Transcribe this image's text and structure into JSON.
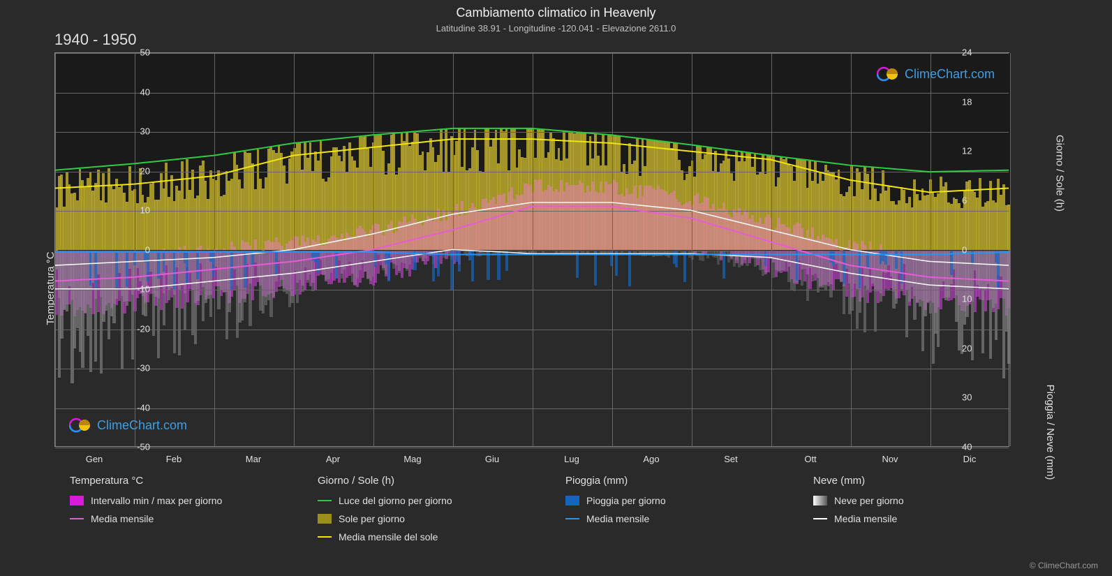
{
  "title": "Cambiamento climatico in Heavenly",
  "subtitle": "Latitudine 38.91 - Longitudine -120.041 - Elevazione 2611.0",
  "period": "1940 - 1950",
  "watermark_text": "ClimeChart.com",
  "copyright": "© ClimeChart.com",
  "chart": {
    "background": "#2a2a2a",
    "grid_color": "#666666",
    "text_color": "#e0e0e0",
    "y_left": {
      "title": "Temperatura °C",
      "min": -50,
      "max": 50,
      "step": 10,
      "ticks": [
        -50,
        -40,
        -30,
        -20,
        -10,
        0,
        10,
        20,
        30,
        40,
        50
      ]
    },
    "y_right_top": {
      "title": "Giorno / Sole (h)",
      "ticks": [
        0,
        6,
        12,
        18,
        24
      ],
      "min": 0,
      "max": 24
    },
    "y_right_bottom": {
      "title": "Pioggia / Neve (mm)",
      "ticks": [
        0,
        10,
        20,
        30,
        40
      ],
      "min": 0,
      "max": 40
    },
    "x": {
      "labels": [
        "Gen",
        "Feb",
        "Mar",
        "Apr",
        "Mag",
        "Giu",
        "Lug",
        "Ago",
        "Set",
        "Ott",
        "Nov",
        "Dic"
      ]
    },
    "series": {
      "daylight": {
        "color": "#2ecc40",
        "values_h": [
          9.7,
          10.5,
          11.5,
          13.0,
          14.0,
          14.8,
          14.8,
          14.0,
          12.8,
          11.5,
          10.3,
          9.5
        ]
      },
      "sun_monthly": {
        "color": "#f1e50a",
        "values_h": [
          7.5,
          8.0,
          9.0,
          11.5,
          12.5,
          13.5,
          13.5,
          13.0,
          12.0,
          11.0,
          8.5,
          7.0
        ]
      },
      "temp_mean": {
        "color": "#e85bd8",
        "values_c": [
          -8,
          -7,
          -5,
          -3,
          0,
          5,
          11,
          11,
          8,
          2,
          -4,
          -7
        ]
      },
      "temp_max": {
        "color": "#ffffff",
        "values_c": [
          -4,
          -3,
          -2,
          0,
          4,
          9,
          12,
          12,
          10,
          5,
          0,
          -3
        ]
      },
      "temp_min": {
        "color": "#ffffff",
        "values_c": [
          -10,
          -10,
          -8,
          -6,
          -3,
          0,
          -1,
          -1,
          -1,
          -2,
          -6,
          -9
        ]
      },
      "rain_monthly": {
        "color": "#2196f3",
        "values_mm": [
          0.5,
          0.5,
          0.5,
          0.5,
          0.5,
          1.0,
          1.0,
          1.0,
          1.0,
          1.0,
          1.0,
          1.0
        ]
      },
      "snow_monthly": {
        "color": "#ffffff",
        "intensity": [
          0.7,
          0.6,
          0.5,
          0.3,
          0.15,
          0.05,
          0.02,
          0.02,
          0.05,
          0.15,
          0.4,
          0.6
        ]
      }
    },
    "band_colors": {
      "sun_fill": "#b8a82a",
      "temp_fill_warm": "#e87fb5",
      "temp_fill_cold": "#c946d4",
      "snow_fill": "#888888",
      "rain_fill": "#1565c0",
      "dark_top": "#1a1a1a"
    }
  },
  "legend": {
    "cols": [
      {
        "title": "Temperatura °C",
        "items": [
          {
            "type": "swatch",
            "color": "#d81bd8",
            "label": "Intervallo min / max per giorno"
          },
          {
            "type": "line",
            "color": "#e85bd8",
            "label": "Media mensile"
          }
        ]
      },
      {
        "title": "Giorno / Sole (h)",
        "items": [
          {
            "type": "line",
            "color": "#2ecc40",
            "label": "Luce del giorno per giorno"
          },
          {
            "type": "swatch",
            "color": "#9a8f1a",
            "label": "Sole per giorno"
          },
          {
            "type": "line",
            "color": "#f1e50a",
            "label": "Media mensile del sole"
          }
        ]
      },
      {
        "title": "Pioggia (mm)",
        "items": [
          {
            "type": "swatch",
            "color": "#1565c0",
            "label": "Pioggia per giorno"
          },
          {
            "type": "line",
            "color": "#2196f3",
            "label": "Media mensile"
          }
        ]
      },
      {
        "title": "Neve (mm)",
        "items": [
          {
            "type": "swatch-grad",
            "color": "#cccccc",
            "label": "Neve per giorno"
          },
          {
            "type": "line",
            "color": "#ffffff",
            "label": "Media mensile"
          }
        ]
      }
    ]
  }
}
